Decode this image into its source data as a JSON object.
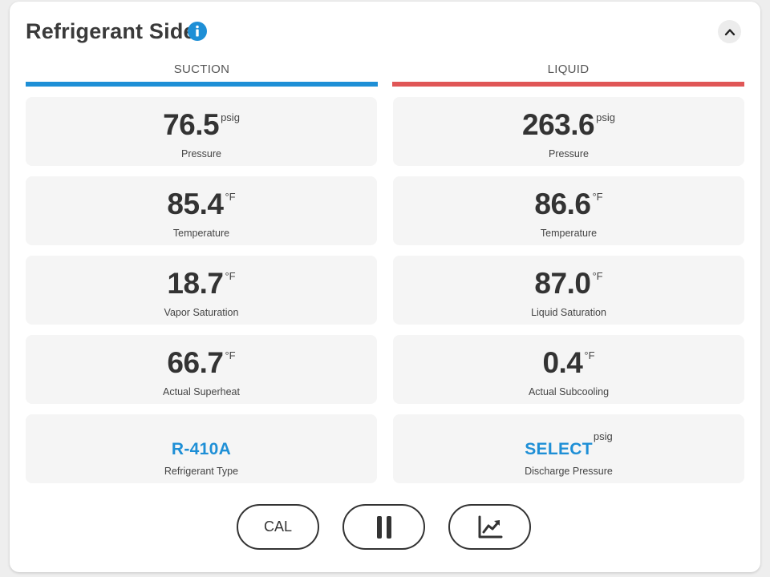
{
  "header": {
    "title": "Refrigerant Side",
    "info_icon": "info-icon",
    "collapse_icon": "chevron-up-icon"
  },
  "colors": {
    "suction": "#1e8fd6",
    "liquid": "#e05656",
    "link": "#1e8fd6"
  },
  "suction": {
    "header": "SUCTION",
    "tiles": [
      {
        "value": "76.5",
        "unit": "psig",
        "label": "Pressure"
      },
      {
        "value": "85.4",
        "unit": "°F",
        "label": "Temperature"
      },
      {
        "value": "18.7",
        "unit": "°F",
        "label": "Vapor Saturation"
      },
      {
        "value": "66.7",
        "unit": "°F",
        "label": "Actual Superheat"
      }
    ],
    "refrigerant": {
      "value": "R-410A",
      "label": "Refrigerant Type"
    }
  },
  "liquid": {
    "header": "LIQUID",
    "tiles": [
      {
        "value": "263.6",
        "unit": "psig",
        "label": "Pressure"
      },
      {
        "value": "86.6",
        "unit": "°F",
        "label": "Temperature"
      },
      {
        "value": "87.0",
        "unit": "°F",
        "label": "Liquid Saturation"
      },
      {
        "value": "0.4",
        "unit": "°F",
        "label": "Actual Subcooling"
      }
    ],
    "discharge": {
      "value": "SELECT",
      "unit": "psig",
      "label": "Discharge Pressure"
    }
  },
  "controls": {
    "cal_label": "CAL",
    "pause_icon": "pause-icon",
    "chart_icon": "line-chart-icon"
  }
}
